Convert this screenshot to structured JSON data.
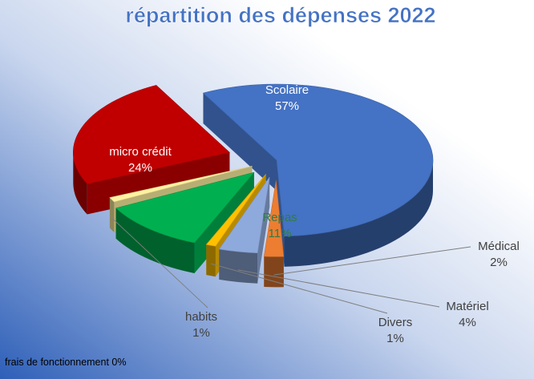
{
  "chart_data": {
    "type": "pie",
    "title": "répartition des dépenses 2022",
    "slices": [
      {
        "label": "Scolaire",
        "value": 57,
        "value_label": "57%",
        "color": "#4472C4"
      },
      {
        "label": "Médical",
        "value": 2,
        "value_label": "2%",
        "color": "#ED7D31"
      },
      {
        "label": "Matériel",
        "value": 4,
        "value_label": "4%",
        "color": "#8EA9DB"
      },
      {
        "label": "Divers",
        "value": 1,
        "value_label": "1%",
        "color": "#FFC000"
      },
      {
        "label": "Repas",
        "value": 11,
        "value_label": "11%",
        "color": "#00B050"
      },
      {
        "label": "habits",
        "value": 1,
        "value_label": "1%",
        "color": "#FFF2A0"
      },
      {
        "label": "micro crédit",
        "value": 24,
        "value_label": "24%",
        "color": "#C00000"
      }
    ],
    "footnote": "frais de fonctionnement 0%",
    "style": "3d-exploded"
  }
}
